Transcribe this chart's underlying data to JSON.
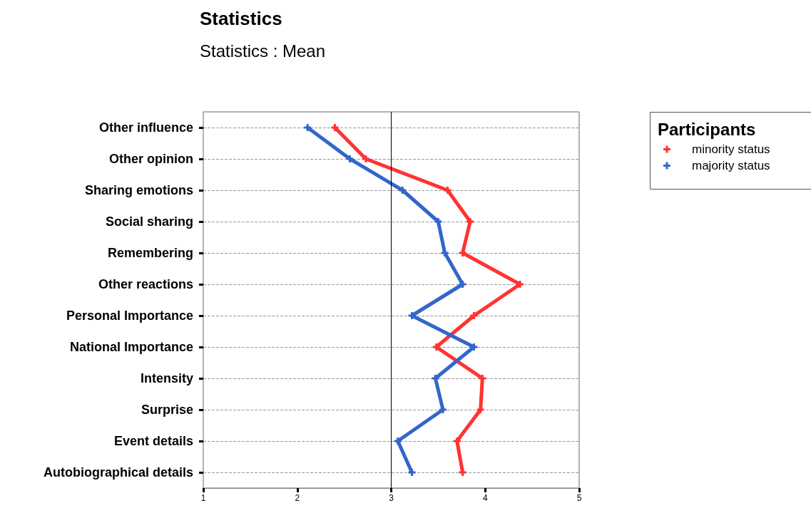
{
  "chart_data": {
    "type": "line",
    "title": "Statistics",
    "subtitle": "Statistics : Mean",
    "orientation": "horizontal",
    "legend_title": "Participants",
    "legend": "top right",
    "grid": "y",
    "marker": "cross",
    "line_style": "solid",
    "categories": [
      "Other influence",
      "Other opinion",
      "Sharing emotions",
      "Social sharing",
      "Remembering",
      "Other reactions",
      "Personal Importance",
      "National Importance",
      "Intensity",
      "Surprise",
      "Event details",
      "Autobiographical details"
    ],
    "xlim": [
      1,
      5
    ],
    "xticks": [
      1,
      2,
      3,
      4,
      5
    ],
    "ref_lines": [
      {
        "axis": "x",
        "value": 3,
        "color": "#000000"
      }
    ],
    "series": [
      {
        "name": "minority status",
        "color": "#ff3333",
        "values": [
          2.4,
          2.73,
          3.6,
          3.84,
          3.76,
          4.37,
          3.88,
          3.48,
          3.97,
          3.95,
          3.7,
          3.76
        ]
      },
      {
        "name": "majority status",
        "color": "#3366cc",
        "values": [
          2.11,
          2.56,
          3.12,
          3.5,
          3.57,
          3.76,
          3.22,
          3.88,
          3.47,
          3.55,
          3.07,
          3.22
        ]
      }
    ]
  }
}
